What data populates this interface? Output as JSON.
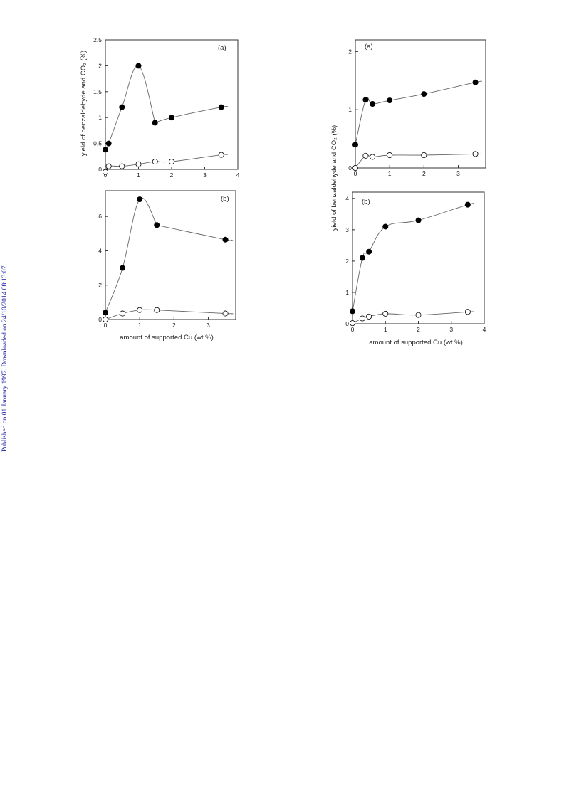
{
  "side_note": "Published on 01 January 1997. Downloaded on 24/10/2014 08:13:07.",
  "colors": {
    "axis": "#333333",
    "curve": "#666666",
    "filled": "#000000",
    "open": "#ffffff",
    "side_note": "#1a1aa0"
  },
  "chart_data": [
    {
      "type": "scatter",
      "panel_label": "(a)",
      "ylabel": "yield of benzaldehyde and CO₂ (%)",
      "xlabel": "",
      "xlim": [
        0,
        4
      ],
      "ylim": [
        0,
        2.5
      ],
      "xticks": [
        0,
        1,
        2,
        3,
        4
      ],
      "yticks": [
        0,
        0.5,
        1,
        1.5,
        2,
        2.5
      ],
      "ytick_labels": [
        "0",
        "0.5",
        "1",
        "1.5",
        "2",
        "2.5"
      ],
      "series": [
        {
          "marker": "filled",
          "x": [
            0,
            0.1,
            0.5,
            1.0,
            1.5,
            2.0,
            3.5
          ],
          "y": [
            0.38,
            0.5,
            1.2,
            2.0,
            0.9,
            1.0,
            1.2
          ]
        },
        {
          "marker": "open",
          "x": [
            0,
            0.1,
            0.5,
            1.0,
            1.5,
            2.0,
            3.5
          ],
          "y": [
            -0.05,
            0.06,
            0.06,
            0.1,
            0.15,
            0.15,
            0.28
          ]
        }
      ]
    },
    {
      "type": "scatter",
      "panel_label": "(b)",
      "ylabel": "",
      "xlabel": "amount of supported Cu (wt.%)",
      "xlim": [
        0,
        3.8
      ],
      "ylim": [
        0,
        7.5
      ],
      "xticks": [
        0,
        1,
        2,
        3
      ],
      "yticks": [
        0,
        2,
        4,
        6
      ],
      "ytick_labels": [
        "0",
        "2",
        "4",
        "6"
      ],
      "series": [
        {
          "marker": "filled",
          "x": [
            0,
            0.5,
            1.0,
            1.5,
            3.5
          ],
          "y": [
            0.4,
            3.0,
            7.0,
            5.5,
            4.65
          ]
        },
        {
          "marker": "open",
          "x": [
            0,
            0.5,
            1.0,
            1.5,
            3.5
          ],
          "y": [
            0,
            0.35,
            0.55,
            0.55,
            0.35
          ]
        }
      ]
    },
    {
      "type": "scatter",
      "panel_label": "(a)",
      "ylabel": "",
      "xlabel": "",
      "xlim": [
        0,
        3.8
      ],
      "ylim": [
        0,
        2.2
      ],
      "xticks": [
        0,
        1,
        2,
        3
      ],
      "yticks": [
        0,
        1,
        2
      ],
      "ytick_labels": [
        "0",
        "1",
        "2"
      ],
      "series": [
        {
          "marker": "filled",
          "x": [
            0,
            0.3,
            0.5,
            1.0,
            2.0,
            3.5
          ],
          "y": [
            0.4,
            1.17,
            1.1,
            1.16,
            1.27,
            1.47
          ]
        },
        {
          "marker": "open",
          "x": [
            0,
            0.3,
            0.5,
            1.0,
            2.0,
            3.5
          ],
          "y": [
            0,
            0.21,
            0.19,
            0.22,
            0.22,
            0.24
          ]
        }
      ]
    },
    {
      "type": "scatter",
      "panel_label": "(b)",
      "ylabel": "yield of benzaldehyde and CO₂ (%)",
      "xlabel": "amount of supported Cu (wt.%)",
      "xlim": [
        0,
        4
      ],
      "ylim": [
        0,
        4.2
      ],
      "xticks": [
        0,
        1,
        2,
        3,
        4
      ],
      "yticks": [
        0,
        1,
        2,
        3,
        4
      ],
      "ytick_labels": [
        "0",
        "1",
        "2",
        "3",
        "4"
      ],
      "series": [
        {
          "marker": "filled",
          "x": [
            0,
            0.3,
            0.5,
            1.0,
            2.0,
            3.5
          ],
          "y": [
            0.4,
            2.1,
            2.3,
            3.1,
            3.3,
            3.8
          ]
        },
        {
          "marker": "open",
          "x": [
            0,
            0.3,
            0.5,
            1.0,
            2.0,
            3.5
          ],
          "y": [
            0.02,
            0.17,
            0.23,
            0.32,
            0.28,
            0.38
          ]
        }
      ]
    }
  ]
}
